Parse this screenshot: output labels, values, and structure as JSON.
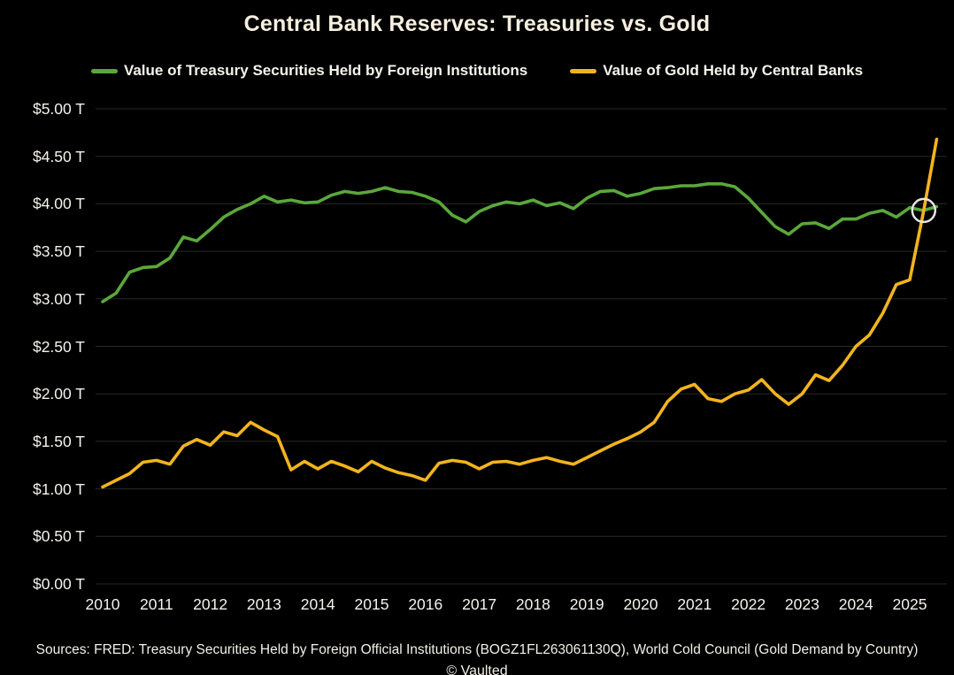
{
  "title": "Central Bank Reserves: Treasuries vs. Gold",
  "legend": {
    "items": [
      {
        "label": "Value of Treasury Securities Held by Foreign Institutions",
        "color": "#5aa83c"
      },
      {
        "label": "Value of Gold Held by Central Banks",
        "color": "#f2b41e"
      }
    ]
  },
  "footer": {
    "sources": "Sources: FRED: Treasury Securities Held by Foreign Official Institutions (BOGZ1FL263061130Q), World Cold Council (Gold Demand by Country)",
    "credit": "© Vaulted"
  },
  "colors": {
    "background": "#000000",
    "text": "#f5f3ec",
    "title_text": "#f6efdf",
    "gridline": "#292929",
    "treasury_green": "#5aa83c",
    "gold_yellow": "#f2b41e",
    "annotation_circle": "#e5e5e5"
  },
  "chart_data": {
    "type": "line",
    "title": "Central Bank Reserves: Treasuries vs. Gold",
    "xlabel": "",
    "ylabel": "",
    "ylim": [
      0,
      5
    ],
    "grid": true,
    "legend_position": "top",
    "ytick_values": [
      0,
      0.5,
      1,
      1.5,
      2,
      2.5,
      3,
      3.5,
      4,
      4.5,
      5
    ],
    "ytick_labels": [
      "$0.00 T",
      "$0.50 T",
      "$1.00 T",
      "$1.50 T",
      "$2.00 T",
      "$2.50 T",
      "$3.00 T",
      "$3.50 T",
      "$4.00 T",
      "$4.50 T",
      "$5.00 T"
    ],
    "xtick_labels": [
      "2010",
      "2011",
      "2012",
      "2013",
      "2014",
      "2015",
      "2016",
      "2017",
      "2018",
      "2019",
      "2020",
      "2021",
      "2022",
      "2023",
      "2024",
      "2025"
    ],
    "x": [
      2010,
      2010.25,
      2010.5,
      2010.75,
      2011,
      2011.25,
      2011.5,
      2011.75,
      2012,
      2012.25,
      2012.5,
      2012.75,
      2013,
      2013.25,
      2013.5,
      2013.75,
      2014,
      2014.25,
      2014.5,
      2014.75,
      2015,
      2015.25,
      2015.5,
      2015.75,
      2016,
      2016.25,
      2016.5,
      2016.75,
      2017,
      2017.25,
      2017.5,
      2017.75,
      2018,
      2018.25,
      2018.5,
      2018.75,
      2019,
      2019.25,
      2019.5,
      2019.75,
      2020,
      2020.25,
      2020.5,
      2020.75,
      2021,
      2021.25,
      2021.5,
      2021.75,
      2022,
      2022.25,
      2022.5,
      2022.75,
      2023,
      2023.25,
      2023.5,
      2023.75,
      2024,
      2024.25,
      2024.5,
      2024.75,
      2025,
      2025.25,
      2025.5
    ],
    "series": [
      {
        "name": "Value of Treasury Securities Held by Foreign Institutions",
        "color": "#5aa83c",
        "values": [
          2.97,
          3.06,
          3.28,
          3.33,
          3.34,
          3.43,
          3.65,
          3.61,
          3.73,
          3.86,
          3.94,
          4.0,
          4.08,
          4.02,
          4.04,
          4.01,
          4.02,
          4.09,
          4.13,
          4.11,
          4.13,
          4.17,
          4.13,
          4.12,
          4.08,
          4.02,
          3.88,
          3.81,
          3.92,
          3.98,
          4.02,
          4.0,
          4.04,
          3.98,
          4.01,
          3.95,
          4.06,
          4.13,
          4.14,
          4.08,
          4.11,
          4.16,
          4.17,
          4.19,
          4.19,
          4.21,
          4.21,
          4.18,
          4.06,
          3.91,
          3.76,
          3.68,
          3.79,
          3.8,
          3.74,
          3.84,
          3.84,
          3.9,
          3.93,
          3.86,
          3.96,
          3.93,
          3.97
        ]
      },
      {
        "name": "Value of Gold Held by Central Banks",
        "color": "#f2b41e",
        "values": [
          1.02,
          1.09,
          1.16,
          1.28,
          1.3,
          1.26,
          1.45,
          1.52,
          1.46,
          1.6,
          1.56,
          1.7,
          1.62,
          1.55,
          1.2,
          1.29,
          1.21,
          1.29,
          1.24,
          1.18,
          1.29,
          1.22,
          1.17,
          1.14,
          1.09,
          1.27,
          1.3,
          1.28,
          1.21,
          1.28,
          1.29,
          1.26,
          1.3,
          1.33,
          1.29,
          1.26,
          1.33,
          1.4,
          1.47,
          1.53,
          1.6,
          1.7,
          1.92,
          2.05,
          2.1,
          1.95,
          1.92,
          2.0,
          2.04,
          2.15,
          2.0,
          1.89,
          2.0,
          2.2,
          2.14,
          2.3,
          2.5,
          2.62,
          2.85,
          3.15,
          3.2,
          3.9,
          4.68
        ]
      }
    ],
    "annotation": {
      "shape": "circle-outline",
      "x": 2025.26,
      "y": 3.93
    }
  }
}
